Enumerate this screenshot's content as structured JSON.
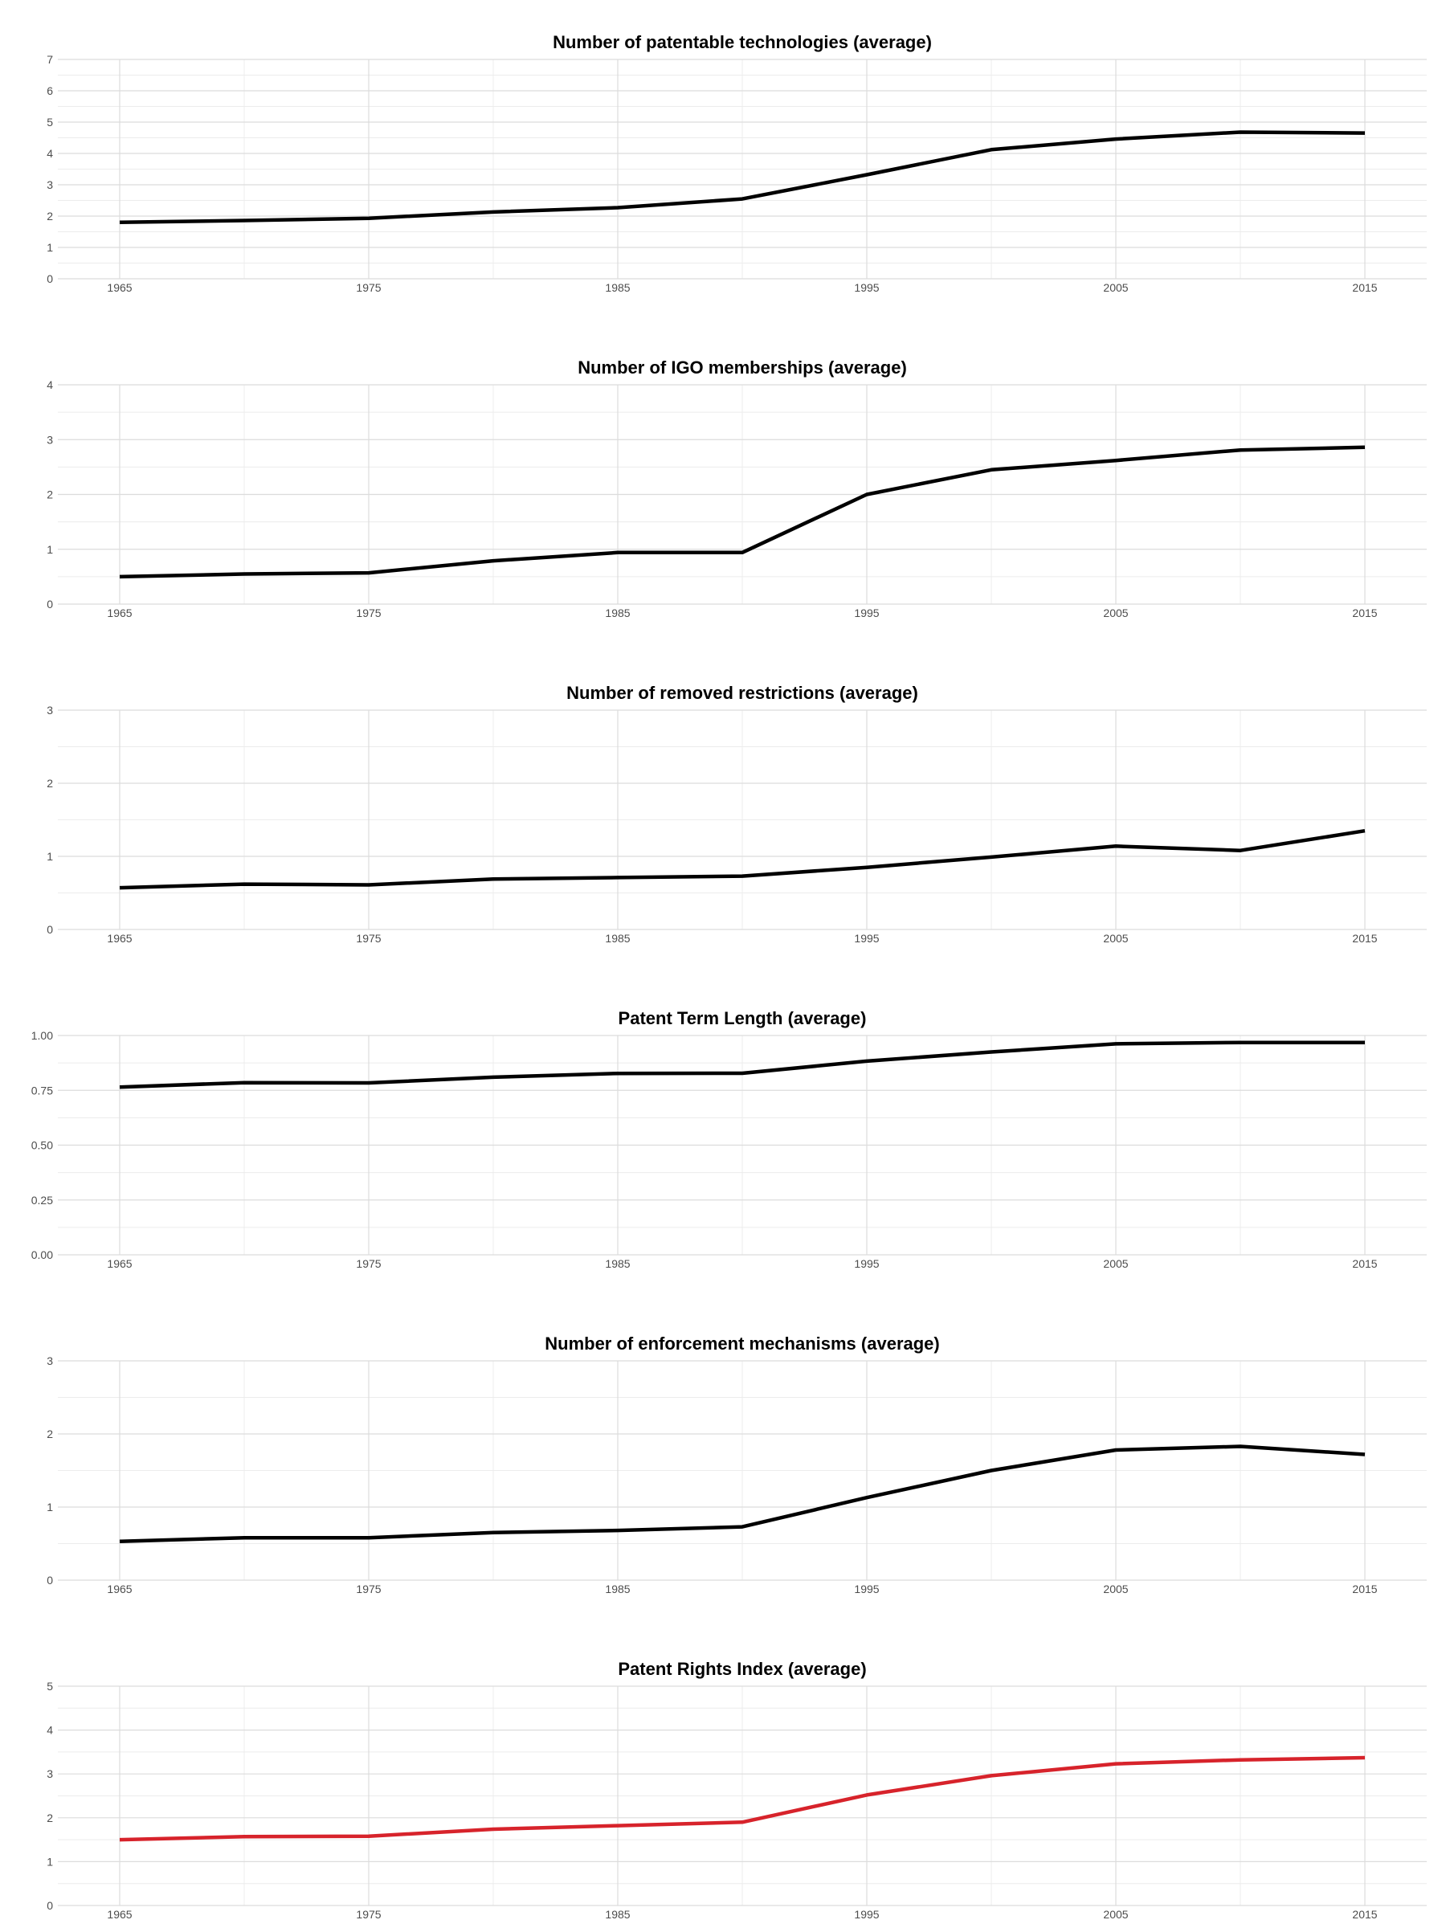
{
  "colors": {
    "default_line": "#000000",
    "highlight_line": "#d7232b"
  },
  "chart_data": [
    {
      "type": "line",
      "title": "Number of patentable technologies (average)",
      "xlabel": "",
      "ylabel": "",
      "x": [
        1965,
        1970,
        1975,
        1980,
        1985,
        1990,
        1995,
        2000,
        2005,
        2010,
        2015
      ],
      "values": [
        1.8,
        1.86,
        1.93,
        2.13,
        2.27,
        2.55,
        3.32,
        4.12,
        4.46,
        4.68,
        4.65
      ],
      "xlim": [
        1965,
        2015
      ],
      "x_ticks": [
        "1965",
        "1975",
        "1985",
        "1995",
        "2005",
        "2015"
      ],
      "ylim": [
        0,
        7
      ],
      "y_ticks": [
        "0",
        "1",
        "2",
        "3",
        "4",
        "5",
        "6",
        "7"
      ],
      "color": "#000000",
      "grid": true
    },
    {
      "type": "line",
      "title": "Number of IGO memberships (average)",
      "xlabel": "",
      "ylabel": "",
      "x": [
        1965,
        1970,
        1975,
        1980,
        1985,
        1990,
        1995,
        2000,
        2005,
        2010,
        2015
      ],
      "values": [
        0.5,
        0.55,
        0.57,
        0.79,
        0.94,
        0.94,
        2.0,
        2.45,
        2.62,
        2.81,
        2.86
      ],
      "xlim": [
        1965,
        2015
      ],
      "x_ticks": [
        "1965",
        "1975",
        "1985",
        "1995",
        "2005",
        "2015"
      ],
      "ylim": [
        0,
        4
      ],
      "y_ticks": [
        "0",
        "1",
        "2",
        "3",
        "4"
      ],
      "color": "#000000",
      "grid": true
    },
    {
      "type": "line",
      "title": "Number of removed restrictions (average)",
      "xlabel": "",
      "ylabel": "",
      "x": [
        1965,
        1970,
        1975,
        1980,
        1985,
        1990,
        1995,
        2000,
        2005,
        2010,
        2015
      ],
      "values": [
        0.57,
        0.62,
        0.61,
        0.69,
        0.71,
        0.73,
        0.85,
        0.99,
        1.14,
        1.08,
        1.35
      ],
      "xlim": [
        1965,
        2015
      ],
      "x_ticks": [
        "1965",
        "1975",
        "1985",
        "1995",
        "2005",
        "2015"
      ],
      "ylim": [
        0,
        3
      ],
      "y_ticks": [
        "0",
        "1",
        "2",
        "3"
      ],
      "color": "#000000",
      "grid": true
    },
    {
      "type": "line",
      "title": "Patent Term Length (average)",
      "xlabel": "",
      "ylabel": "",
      "x": [
        1965,
        1970,
        1975,
        1980,
        1985,
        1990,
        1995,
        2000,
        2005,
        2010,
        2015
      ],
      "values": [
        0.765,
        0.785,
        0.784,
        0.81,
        0.827,
        0.828,
        0.883,
        0.925,
        0.962,
        0.968,
        0.968
      ],
      "xlim": [
        1965,
        2015
      ],
      "x_ticks": [
        "1965",
        "1975",
        "1985",
        "1995",
        "2005",
        "2015"
      ],
      "ylim": [
        0,
        1
      ],
      "y_ticks": [
        "0.00",
        "0.25",
        "0.50",
        "0.75",
        "1.00"
      ],
      "color": "#000000",
      "grid": true
    },
    {
      "type": "line",
      "title": "Number of enforcement mechanisms (average)",
      "xlabel": "",
      "ylabel": "",
      "x": [
        1965,
        1970,
        1975,
        1980,
        1985,
        1990,
        1995,
        2000,
        2005,
        2010,
        2015
      ],
      "values": [
        0.53,
        0.58,
        0.58,
        0.65,
        0.68,
        0.73,
        1.13,
        1.5,
        1.78,
        1.83,
        1.72
      ],
      "xlim": [
        1965,
        2015
      ],
      "x_ticks": [
        "1965",
        "1975",
        "1985",
        "1995",
        "2005",
        "2015"
      ],
      "ylim": [
        0,
        3
      ],
      "y_ticks": [
        "0",
        "1",
        "2",
        "3"
      ],
      "color": "#000000",
      "grid": true
    },
    {
      "type": "line",
      "title": "Patent Rights Index (average)",
      "xlabel": "",
      "ylabel": "",
      "x": [
        1965,
        1970,
        1975,
        1980,
        1985,
        1990,
        1995,
        2000,
        2005,
        2010,
        2015
      ],
      "values": [
        1.5,
        1.57,
        1.58,
        1.74,
        1.82,
        1.9,
        2.52,
        2.96,
        3.23,
        3.32,
        3.37
      ],
      "xlim": [
        1965,
        2015
      ],
      "x_ticks": [
        "1965",
        "1975",
        "1985",
        "1995",
        "2005",
        "2015"
      ],
      "ylim": [
        0,
        5
      ],
      "y_ticks": [
        "0",
        "1",
        "2",
        "3",
        "4",
        "5"
      ],
      "color": "#d7232b",
      "grid": true
    }
  ]
}
